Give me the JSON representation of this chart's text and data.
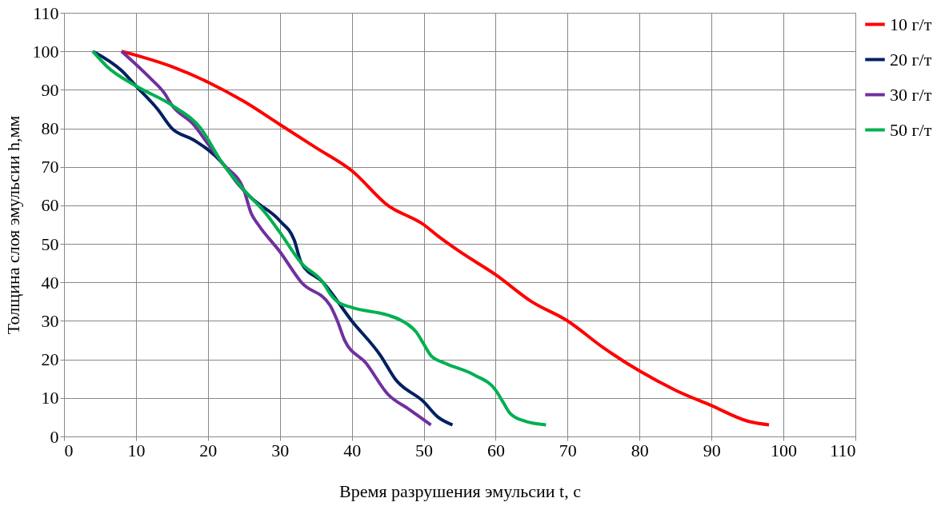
{
  "chart_data": {
    "type": "line",
    "xlabel": "Время разрушения эмульсии t, с",
    "ylabel": "Толщина слоя эмульсии h,мм",
    "xlim": [
      0,
      110
    ],
    "xticks": [
      0,
      10,
      20,
      30,
      40,
      50,
      60,
      70,
      80,
      90,
      100,
      110
    ],
    "ylim": [
      0,
      110
    ],
    "yticks": [
      0,
      10,
      20,
      30,
      40,
      50,
      60,
      70,
      80,
      90,
      100,
      110
    ],
    "grid": true,
    "legend": "right",
    "marker": "none",
    "line_style": "solid",
    "series": [
      {
        "name": "10 г/т",
        "color": "#ff0000",
        "x": [
          8,
          15,
          20,
          25,
          30,
          35,
          40,
          45,
          50,
          52,
          55,
          60,
          65,
          70,
          75,
          80,
          85,
          90,
          95,
          98
        ],
        "values": [
          100,
          96,
          92,
          87,
          81,
          75,
          69,
          60,
          55,
          52,
          48,
          42,
          35,
          30,
          23,
          17,
          12,
          8,
          4,
          3
        ]
      },
      {
        "name": "20 г/т",
        "color": "#002060",
        "x": [
          4,
          8,
          10,
          13,
          15,
          18,
          22,
          24,
          26,
          30,
          32,
          33,
          36,
          40,
          44,
          46,
          50,
          52,
          54
        ],
        "values": [
          100,
          95,
          91,
          85,
          80,
          77,
          71,
          66,
          62,
          56,
          51,
          45,
          40,
          30,
          21,
          15,
          9,
          5,
          3
        ]
      },
      {
        "name": "30 г/т",
        "color": "#7030a0",
        "x": [
          8,
          12,
          14,
          15,
          18,
          20,
          22,
          25,
          26,
          27,
          30,
          33,
          37,
          38,
          39,
          42,
          45,
          48,
          51
        ],
        "values": [
          100,
          93,
          89,
          86,
          81,
          76,
          71,
          64,
          58,
          55,
          48,
          40,
          34,
          30,
          25,
          19,
          11,
          7,
          3
        ]
      },
      {
        "name": "50 г/т",
        "color": "#00b050",
        "x": [
          4,
          6,
          10,
          15,
          19,
          22,
          25,
          28,
          30,
          33,
          36,
          37,
          38,
          40,
          45,
          47,
          49,
          50,
          51,
          53,
          57,
          60,
          61,
          62,
          64,
          67
        ],
        "values": [
          100,
          96,
          91,
          86,
          80,
          71,
          64,
          58,
          53,
          45,
          40,
          37,
          35,
          33.5,
          31.5,
          30,
          27,
          24,
          21,
          19,
          16,
          12,
          9,
          6,
          4,
          3
        ]
      }
    ]
  }
}
